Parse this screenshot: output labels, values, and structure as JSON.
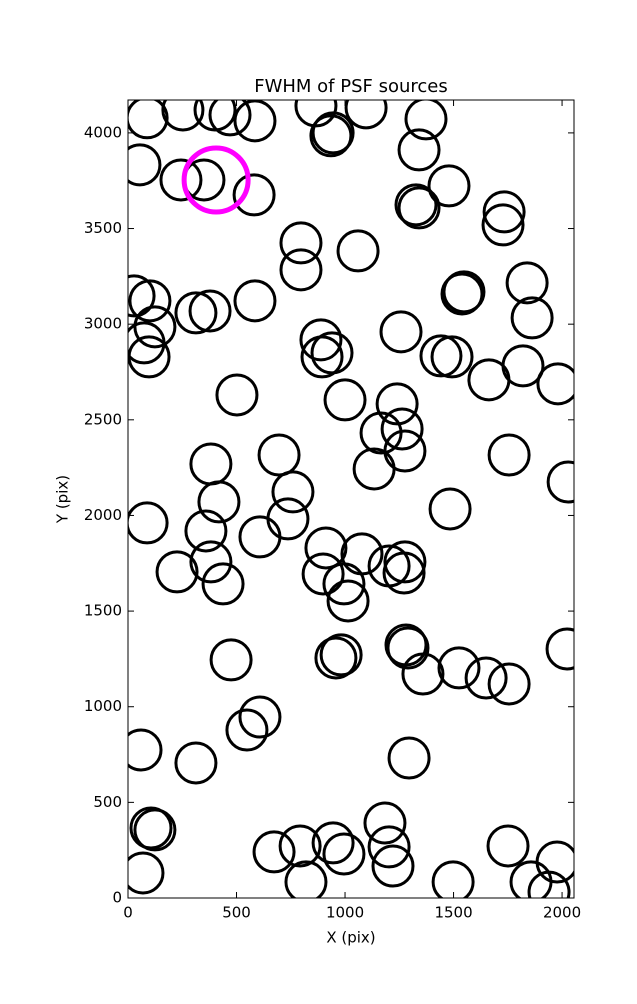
{
  "chart_data": {
    "type": "scatter",
    "title": "FWHM of PSF sources",
    "x_label": "X (pix)",
    "y_label": "Y (pix)",
    "xlim": [
      0,
      2055
    ],
    "ylim": [
      0,
      4172
    ],
    "xticks": [
      0,
      500,
      1000,
      1500,
      2000
    ],
    "yticks": [
      0,
      500,
      1000,
      1500,
      2000,
      2500,
      3000,
      3500,
      4000
    ],
    "grid": false,
    "series": [
      {
        "color": "#000000",
        "x": [
          88,
          253,
          401,
          470,
          585,
          866,
          945,
          935,
          1097,
          1373,
          1341,
          55,
          244,
          350,
          581,
          1479,
          1733,
          1728,
          1327,
          1341,
          797,
          1060,
          797,
          28,
          101,
          585,
          1839,
          1548,
          1539,
          124,
          313,
          378,
          1862,
          74,
          97,
          889,
          894,
          940,
          1258,
          1442,
          1493,
          1663,
          1820,
          1981,
          502,
          1000,
          1240,
          1166,
          1263,
          1276,
          1134,
          696,
          382,
          760,
          419,
          1756,
          2028,
          1484,
          88,
          359,
          737,
          608,
          912,
          1078,
          382,
          226,
          899,
          995,
          1014,
          1203,
          1276,
          1272,
          438,
          475,
          982,
          958,
          1281,
          1290,
          1359,
          1525,
          1650,
          1756,
          2023,
          608,
          548,
          60,
          313,
          1295,
          106,
          124,
          1184,
          1203,
          1221,
          673,
          793,
          820,
          945,
          995,
          69,
          1498,
          1751,
          1857,
          1977,
          1940
        ],
        "values": [
          4079,
          4120,
          4120,
          4094,
          4063,
          4141,
          4000,
          3985,
          4131,
          4073,
          3911,
          3833,
          3754,
          3754,
          3676,
          3723,
          3587,
          3519,
          3624,
          3608,
          3425,
          3383,
          3284,
          3148,
          3122,
          3122,
          3216,
          3169,
          3158,
          2986,
          3059,
          3069,
          3033,
          2902,
          2829,
          2918,
          2829,
          2850,
          2960,
          2834,
          2829,
          2709,
          2782,
          2688,
          2630,
          2604,
          2583,
          2431,
          2452,
          2337,
          2243,
          2316,
          2269,
          2123,
          2071,
          2316,
          2175,
          2034,
          1961,
          1919,
          1982,
          1888,
          1830,
          1799,
          1757,
          1705,
          1694,
          1642,
          1553,
          1736,
          1757,
          1699,
          1642,
          1245,
          1271,
          1255,
          1323,
          1307,
          1171,
          1203,
          1150,
          1119,
          1302,
          946,
          878,
          774,
          706,
          732,
          366,
          356,
          392,
          267,
          167,
          241,
          272,
          84,
          288,
          230,
          131,
          84,
          272,
          84,
          188,
          31
        ]
      },
      {
        "color": "#ff00ff",
        "x": [
          406
        ],
        "values": [
          3754
        ]
      }
    ]
  }
}
